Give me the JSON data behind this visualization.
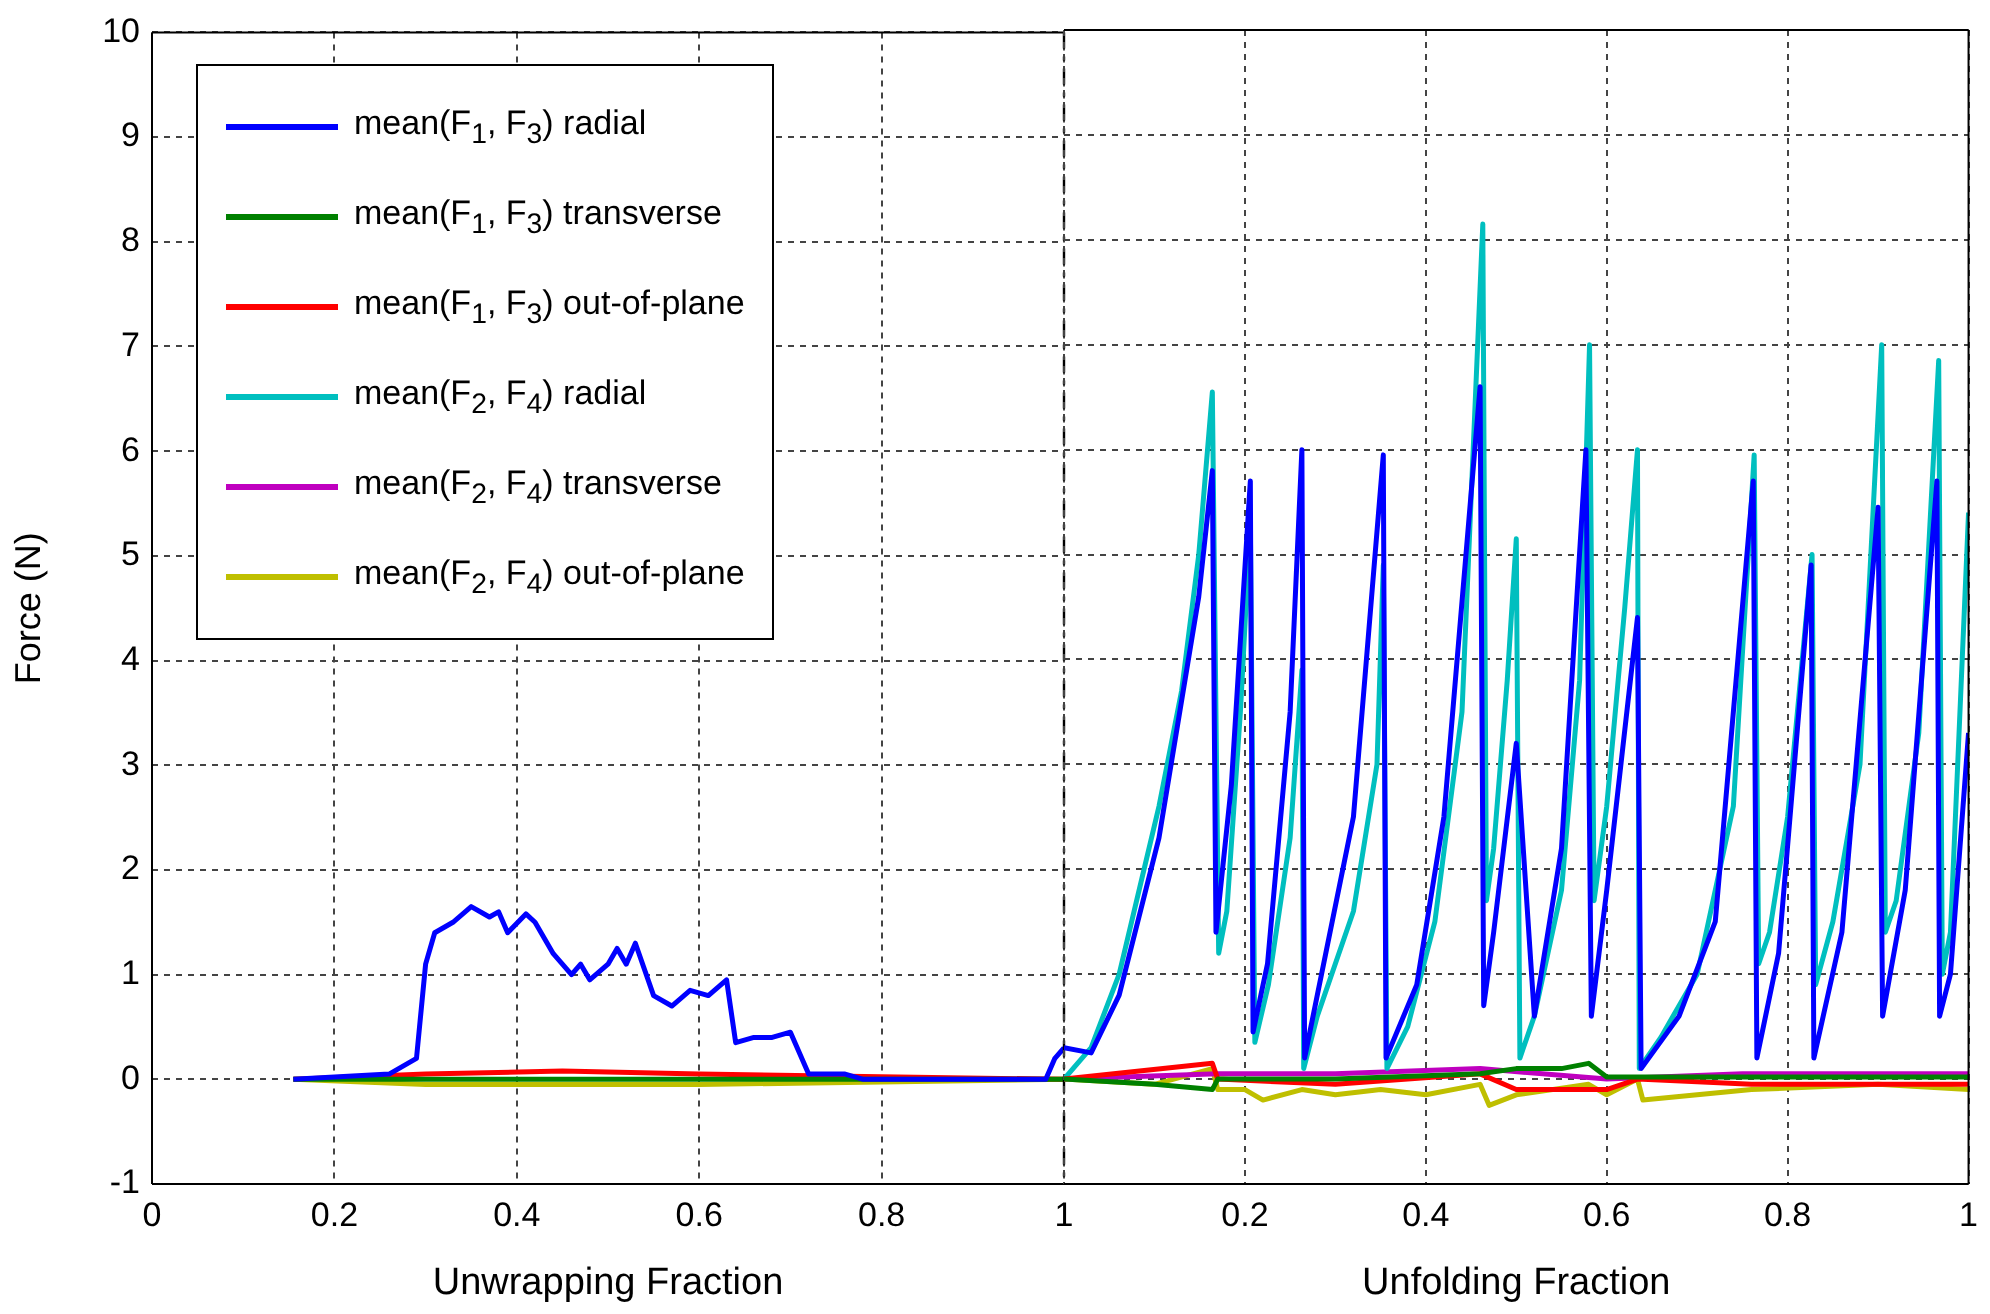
{
  "chart_data": [
    {
      "type": "line",
      "xlabel": "Unwrapping Fraction",
      "ylabel": "Force (N)",
      "xlim": [
        0,
        1
      ],
      "xticks": [
        0,
        0.2,
        0.4,
        0.6,
        0.8,
        1
      ],
      "ylim": [
        -1,
        10
      ],
      "yticks": [
        -1,
        0,
        1,
        2,
        3,
        4,
        5,
        6,
        7,
        8,
        9,
        10
      ],
      "grid": true,
      "legend": "top left",
      "marker": "none",
      "line_style": "solid",
      "ref_lines": [
        {
          "axis": "x",
          "value": 1,
          "color": "#000000",
          "line_style": "dashed"
        }
      ],
      "series": [
        {
          "name": "mean(F$_{1}$, F$_{3}$) radial",
          "color": "#0000ff",
          "x": [
            0.155,
            0.26,
            0.29,
            0.3,
            0.31,
            0.33,
            0.35,
            0.37,
            0.38,
            0.39,
            0.41,
            0.42,
            0.44,
            0.46,
            0.47,
            0.48,
            0.5,
            0.51,
            0.52,
            0.53,
            0.55,
            0.57,
            0.59,
            0.61,
            0.63,
            0.64,
            0.66,
            0.68,
            0.7,
            0.72,
            0.76,
            0.78,
            0.98,
            0.99,
            1.0
          ],
          "values": [
            0,
            0.05,
            0.2,
            1.1,
            1.4,
            1.5,
            1.65,
            1.55,
            1.6,
            1.4,
            1.58,
            1.5,
            1.2,
            1.0,
            1.1,
            0.95,
            1.1,
            1.25,
            1.1,
            1.3,
            0.8,
            0.7,
            0.85,
            0.8,
            0.95,
            0.35,
            0.4,
            0.4,
            0.45,
            0.05,
            0.05,
            0,
            0,
            0.2,
            0.3
          ]
        },
        {
          "name": "mean(F$_{1}$, F$_{3}$) transverse",
          "color": "#008000",
          "x": [
            0.155,
            0.5,
            1.0
          ],
          "values": [
            0,
            0,
            0
          ]
        },
        {
          "name": "mean(F$_{1}$, F$_{3}$) out-of-plane",
          "color": "#ff0000",
          "x": [
            0.155,
            0.3,
            0.45,
            0.6,
            1.0
          ],
          "values": [
            0,
            0.05,
            0.08,
            0.05,
            0
          ]
        },
        {
          "name": "mean(F$_{2}$, F$_{4}$) radial",
          "color": "#00bfbf"
        },
        {
          "name": "mean(F$_{2}$, F$_{4}$) transverse",
          "color": "#bf00bf"
        },
        {
          "name": "mean(F$_{2}$, F$_{4}$) out-of-plane",
          "color": "#bfbf00",
          "x": [
            0.155,
            0.3,
            0.6,
            1.0
          ],
          "values": [
            0,
            -0.05,
            -0.05,
            0
          ]
        }
      ]
    },
    {
      "type": "line",
      "xlabel": "Unfolding Fraction",
      "xlim": [
        0,
        1
      ],
      "xticks": [
        {
          "value": 0,
          "label": null
        },
        0.2,
        0.4,
        0.6,
        0.8,
        1
      ],
      "ylim": [
        -1,
        10
      ],
      "yticks": [
        -1,
        0,
        1,
        2,
        3,
        4,
        5,
        6,
        7,
        8,
        9,
        10
      ],
      "tick_labels": "x",
      "grid": true,
      "marker": "none",
      "line_style": "solid",
      "series": [
        {
          "color": "#0000ff",
          "x": [
            0,
            0.03,
            0.061,
            0.105,
            0.149,
            0.164,
            0.168,
            0.185,
            0.206,
            0.209,
            0.225,
            0.25,
            0.263,
            0.266,
            0.28,
            0.32,
            0.353,
            0.356,
            0.39,
            0.42,
            0.46,
            0.464,
            0.475,
            0.5,
            0.52,
            0.55,
            0.577,
            0.583,
            0.6,
            0.634,
            0.638,
            0.68,
            0.72,
            0.762,
            0.766,
            0.79,
            0.826,
            0.829,
            0.86,
            0.9,
            0.905,
            0.93,
            0.965,
            0.968,
            0.98,
            1.0
          ],
          "values": [
            0.3,
            0.25,
            0.8,
            2.3,
            4.6,
            5.8,
            1.4,
            2.8,
            5.7,
            0.45,
            1.1,
            3.5,
            6.0,
            0.2,
            0.8,
            2.5,
            5.95,
            0.2,
            0.9,
            2.5,
            6.6,
            0.7,
            1.4,
            3.2,
            0.6,
            2.2,
            6.0,
            0.6,
            1.8,
            4.4,
            0.1,
            0.6,
            1.5,
            5.7,
            0.2,
            1.2,
            4.9,
            0.2,
            1.4,
            5.45,
            0.6,
            1.8,
            5.7,
            0.6,
            1.0,
            3.3
          ]
        },
        {
          "color": "#008000",
          "x": [
            0,
            0.1,
            0.164,
            0.17,
            0.3,
            0.46,
            0.5,
            0.55,
            0.58,
            0.6,
            1.0
          ],
          "values": [
            0,
            -0.05,
            -0.1,
            0,
            0,
            0.05,
            0.1,
            0.1,
            0.15,
            0.02,
            0.02
          ]
        },
        {
          "color": "#ff0000",
          "x": [
            0,
            0.164,
            0.17,
            0.3,
            0.46,
            0.5,
            0.6,
            0.634,
            0.76,
            0.9,
            1.0
          ],
          "values": [
            0,
            0.15,
            0,
            -0.05,
            0.05,
            -0.1,
            -0.1,
            0,
            -0.05,
            -0.05,
            -0.05
          ]
        },
        {
          "color": "#00bfbf",
          "x": [
            0,
            0.03,
            0.061,
            0.105,
            0.13,
            0.149,
            0.164,
            0.171,
            0.18,
            0.195,
            0.206,
            0.211,
            0.226,
            0.25,
            0.263,
            0.265,
            0.28,
            0.32,
            0.346,
            0.353,
            0.357,
            0.38,
            0.41,
            0.44,
            0.463,
            0.467,
            0.475,
            0.49,
            0.5,
            0.504,
            0.52,
            0.55,
            0.57,
            0.581,
            0.586,
            0.6,
            0.62,
            0.634,
            0.636,
            0.66,
            0.7,
            0.74,
            0.763,
            0.768,
            0.78,
            0.8,
            0.827,
            0.831,
            0.85,
            0.88,
            0.904,
            0.908,
            0.92,
            0.945,
            0.967,
            0.971,
            0.98,
            1.0
          ],
          "values": [
            0,
            0.3,
            1.0,
            2.6,
            3.7,
            5.0,
            6.55,
            1.2,
            1.6,
            3.5,
            5.3,
            0.35,
            0.9,
            2.3,
            3.9,
            0.1,
            0.6,
            1.6,
            3.0,
            4.9,
            0.1,
            0.5,
            1.5,
            3.5,
            8.15,
            1.7,
            2.2,
            3.8,
            5.15,
            0.2,
            0.6,
            1.8,
            3.8,
            7.0,
            1.7,
            2.6,
            4.5,
            6.0,
            0.1,
            0.4,
            1.0,
            2.6,
            5.95,
            1.1,
            1.4,
            2.5,
            5.0,
            0.9,
            1.5,
            3.0,
            7.0,
            1.4,
            1.7,
            3.3,
            6.85,
            1.0,
            1.4,
            5.4
          ]
        },
        {
          "color": "#bf00bf",
          "x": [
            0,
            0.17,
            0.3,
            0.46,
            0.6,
            0.75,
            1.0
          ],
          "values": [
            0,
            0.05,
            0.05,
            0.1,
            0,
            0.05,
            0.05
          ]
        },
        {
          "color": "#bfbf00",
          "x": [
            0,
            0.1,
            0.164,
            0.17,
            0.2,
            0.22,
            0.263,
            0.3,
            0.35,
            0.4,
            0.46,
            0.47,
            0.5,
            0.58,
            0.6,
            0.634,
            0.64,
            0.76,
            0.9,
            1.0
          ],
          "values": [
            0,
            -0.05,
            0.1,
            -0.1,
            -0.1,
            -0.2,
            -0.1,
            -0.15,
            -0.1,
            -0.15,
            -0.05,
            -0.25,
            -0.15,
            -0.05,
            -0.15,
            0,
            -0.2,
            -0.1,
            -0.05,
            -0.1
          ]
        }
      ]
    }
  ]
}
